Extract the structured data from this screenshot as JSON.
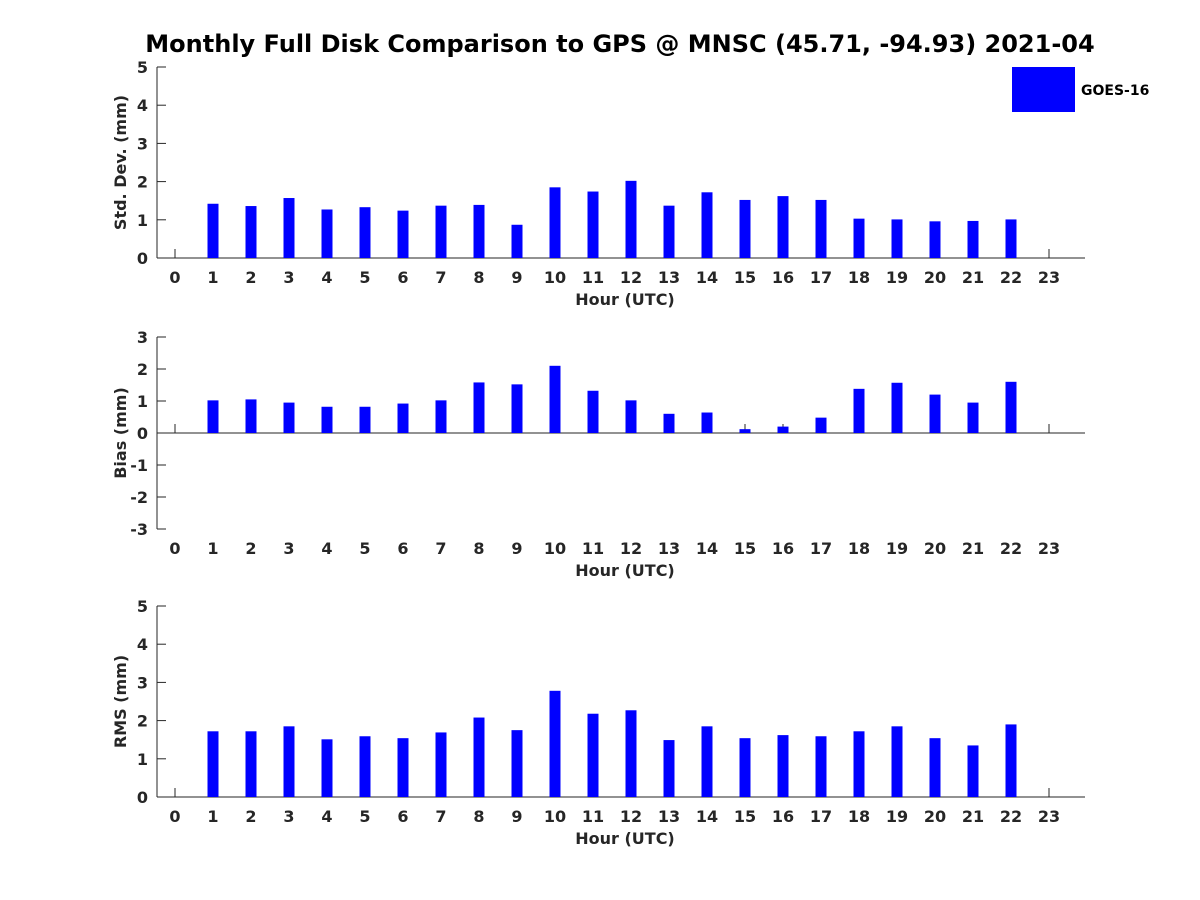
{
  "title": "Monthly Full Disk Comparison to GPS @ MNSC (45.71, -94.93) 2021-04",
  "legend": {
    "label": "GOES-16",
    "color": "#0000ff"
  },
  "chart_data": [
    {
      "type": "bar",
      "title": "",
      "xlabel": "Hour (UTC)",
      "ylabel": "Std. Dev. (mm)",
      "ylim": [
        0,
        5
      ],
      "yticks": [
        0,
        1,
        2,
        3,
        4,
        5
      ],
      "categories": [
        "0",
        "1",
        "2",
        "3",
        "4",
        "5",
        "6",
        "7",
        "8",
        "9",
        "10",
        "11",
        "12",
        "13",
        "14",
        "15",
        "16",
        "17",
        "18",
        "19",
        "20",
        "21",
        "22",
        "23"
      ],
      "series": [
        {
          "name": "GOES-16",
          "values": [
            null,
            1.42,
            1.36,
            1.57,
            1.27,
            1.33,
            1.24,
            1.37,
            1.39,
            0.87,
            1.85,
            1.74,
            2.02,
            1.37,
            1.72,
            1.52,
            1.62,
            1.52,
            1.03,
            1.01,
            0.96,
            0.97,
            1.01,
            null
          ]
        }
      ]
    },
    {
      "type": "bar",
      "title": "",
      "xlabel": "Hour (UTC)",
      "ylabel": "Bias (mm)",
      "ylim": [
        -3,
        3
      ],
      "yticks": [
        -3,
        -2,
        -1,
        0,
        1,
        2,
        3
      ],
      "categories": [
        "0",
        "1",
        "2",
        "3",
        "4",
        "5",
        "6",
        "7",
        "8",
        "9",
        "10",
        "11",
        "12",
        "13",
        "14",
        "15",
        "16",
        "17",
        "18",
        "19",
        "20",
        "21",
        "22",
        "23"
      ],
      "series": [
        {
          "name": "GOES-16",
          "values": [
            null,
            1.02,
            1.05,
            0.95,
            0.82,
            0.82,
            0.92,
            1.02,
            1.58,
            1.52,
            2.1,
            1.32,
            1.02,
            0.6,
            0.64,
            0.12,
            0.2,
            0.48,
            1.38,
            1.57,
            1.2,
            0.95,
            1.6,
            null
          ]
        }
      ]
    },
    {
      "type": "bar",
      "title": "",
      "xlabel": "Hour (UTC)",
      "ylabel": "RMS (mm)",
      "ylim": [
        0,
        5
      ],
      "yticks": [
        0,
        1,
        2,
        3,
        4,
        5
      ],
      "categories": [
        "0",
        "1",
        "2",
        "3",
        "4",
        "5",
        "6",
        "7",
        "8",
        "9",
        "10",
        "11",
        "12",
        "13",
        "14",
        "15",
        "16",
        "17",
        "18",
        "19",
        "20",
        "21",
        "22",
        "23"
      ],
      "series": [
        {
          "name": "GOES-16",
          "values": [
            null,
            1.72,
            1.72,
            1.85,
            1.51,
            1.59,
            1.54,
            1.69,
            2.08,
            1.75,
            2.78,
            2.18,
            2.27,
            1.49,
            1.85,
            1.54,
            1.62,
            1.59,
            1.72,
            1.85,
            1.54,
            1.35,
            1.9,
            null
          ]
        }
      ]
    }
  ]
}
